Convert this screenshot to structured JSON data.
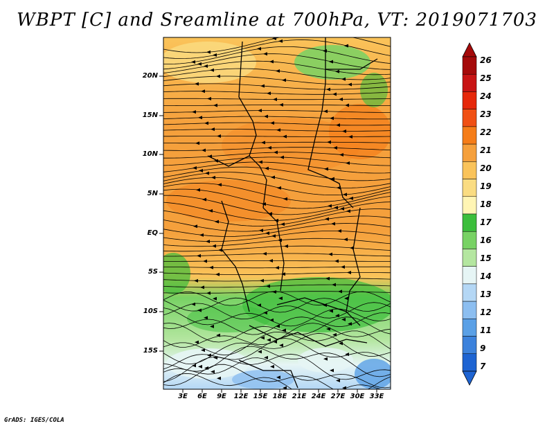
{
  "title": "WBPT [C] and Sreamline at 700hPa, VT: 2019071703",
  "credit": "GrADS: IGES/COLA",
  "latitude_labels": [
    "20N",
    "15N",
    "10N",
    "5N",
    "EQ",
    "5S",
    "10S",
    "15S"
  ],
  "longitude_labels": [
    "3E",
    "6E",
    "9E",
    "12E",
    "15E",
    "18E",
    "21E",
    "24E",
    "27E",
    "30E",
    "33E"
  ],
  "colorbar": {
    "labels": [
      "26",
      "25",
      "24",
      "23",
      "22",
      "21",
      "20",
      "19",
      "18",
      "17",
      "16",
      "15",
      "14",
      "13",
      "12",
      "11",
      "9",
      "7"
    ],
    "colors": [
      "#a50a0a",
      "#c81414",
      "#e6280a",
      "#f05014",
      "#f57d19",
      "#f5a03c",
      "#fac35a",
      "#fadc82",
      "#fff5b4",
      "#3cbe3c",
      "#78d264",
      "#b4e6a0",
      "#e6f5f5",
      "#b4d7f5",
      "#8cbef0",
      "#5aa0e6",
      "#3c82dc",
      "#1e64d2"
    ]
  }
}
